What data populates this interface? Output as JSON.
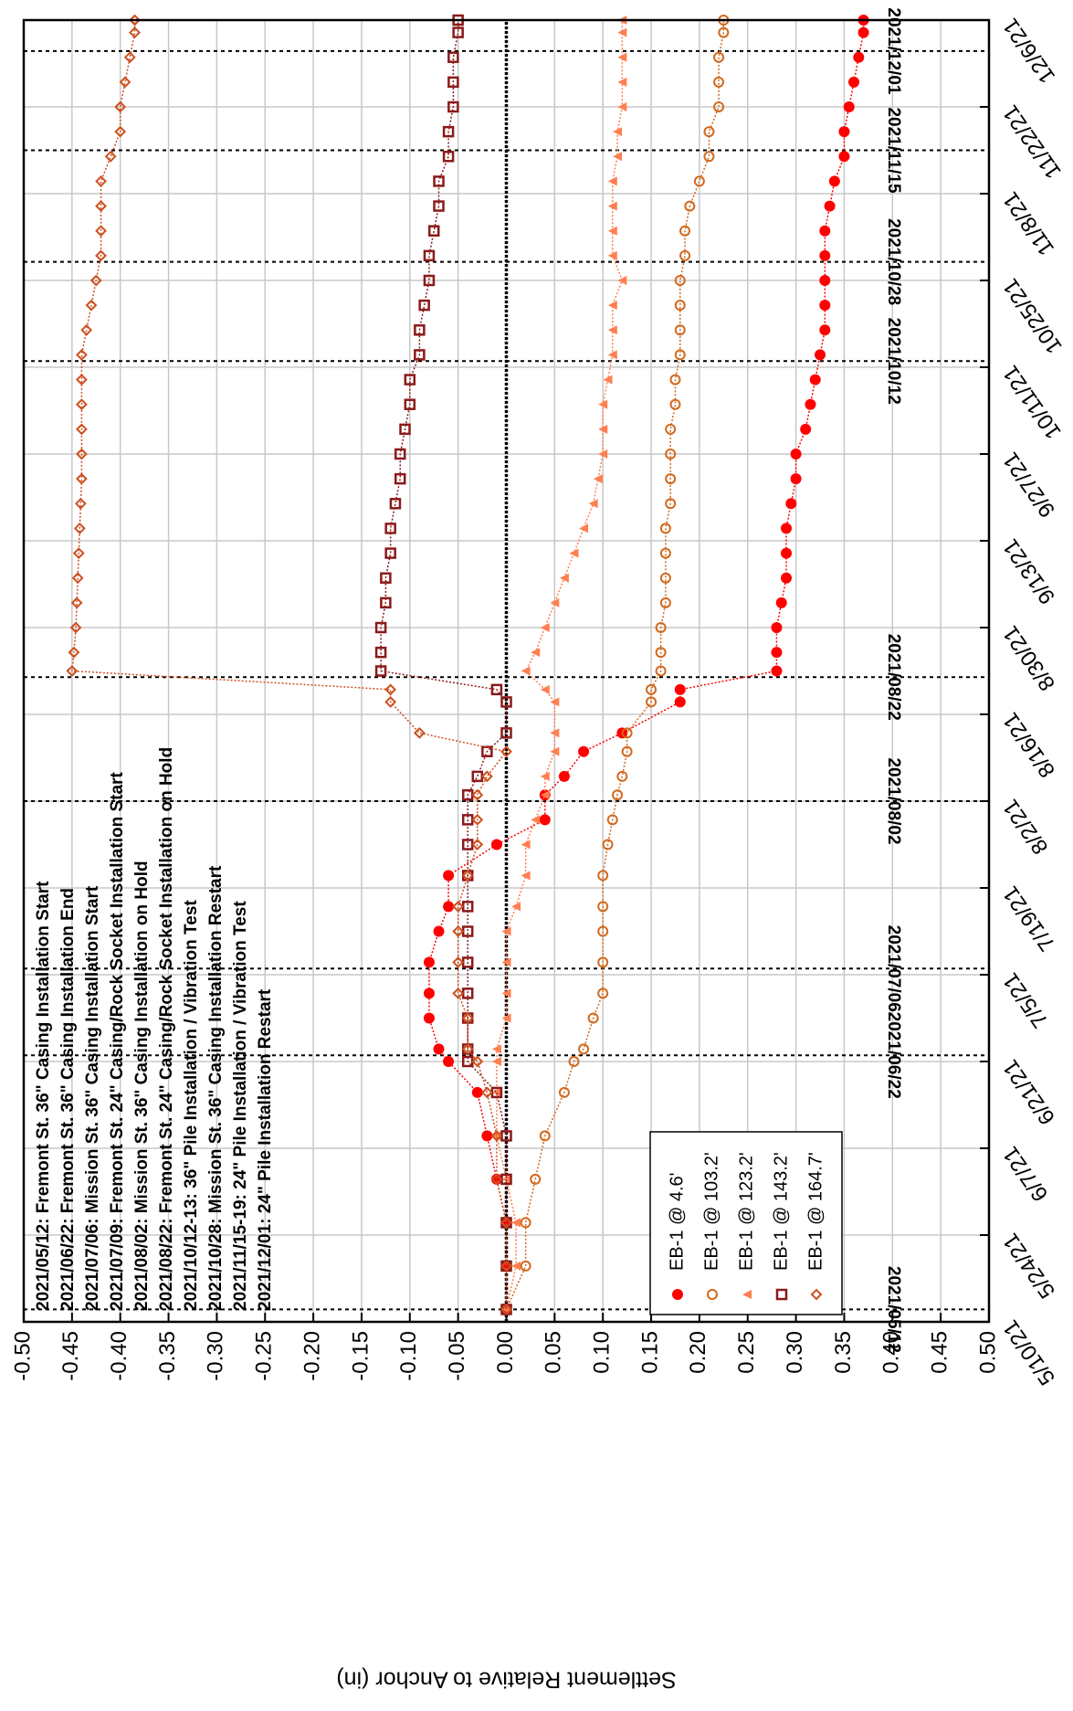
{
  "chart_data": {
    "type": "line",
    "y_label": "Settlement Relative to Anchor (in)",
    "xlim": [
      "2021-05-10",
      "2021-12-06"
    ],
    "xticks": [
      {
        "value": "2021-05-10",
        "label": "5/10/21"
      },
      {
        "value": "2021-05-24",
        "label": "5/24/21"
      },
      {
        "value": "2021-06-07",
        "label": "6/7/21"
      },
      {
        "value": "2021-06-21",
        "label": "6/21/21"
      },
      {
        "value": "2021-07-05",
        "label": "7/5/21"
      },
      {
        "value": "2021-07-19",
        "label": "7/19/21"
      },
      {
        "value": "2021-08-02",
        "label": "8/2/21"
      },
      {
        "value": "2021-08-16",
        "label": "8/16/21"
      },
      {
        "value": "2021-08-30",
        "label": "8/30/21"
      },
      {
        "value": "2021-09-13",
        "label": "9/13/21"
      },
      {
        "value": "2021-09-27",
        "label": "9/27/21"
      },
      {
        "value": "2021-10-11",
        "label": "10/11/21"
      },
      {
        "value": "2021-10-25",
        "label": "10/25/21"
      },
      {
        "value": "2021-11-08",
        "label": "11/8/21"
      },
      {
        "value": "2021-11-22",
        "label": "11/22/21"
      },
      {
        "value": "2021-12-06",
        "label": "12/6/21"
      }
    ],
    "ylim": [
      -0.5,
      0.5
    ],
    "y_inverted": true,
    "yticks": [
      {
        "value": -0.5,
        "label": "-0.50"
      },
      {
        "value": -0.45,
        "label": "-0.45"
      },
      {
        "value": -0.4,
        "label": "-0.40"
      },
      {
        "value": -0.35,
        "label": "-0.35"
      },
      {
        "value": -0.3,
        "label": "-0.30"
      },
      {
        "value": -0.25,
        "label": "-0.25"
      },
      {
        "value": -0.2,
        "label": "-0.20"
      },
      {
        "value": -0.15,
        "label": "-0.15"
      },
      {
        "value": -0.1,
        "label": "-0.10"
      },
      {
        "value": -0.05,
        "label": "-0.05"
      },
      {
        "value": 0,
        "label": "0.00"
      },
      {
        "value": 0.05,
        "label": "0.05"
      },
      {
        "value": 0.1,
        "label": "0.10"
      },
      {
        "value": 0.15,
        "label": "0.15"
      },
      {
        "value": 0.2,
        "label": "0.20"
      },
      {
        "value": 0.25,
        "label": "0.25"
      },
      {
        "value": 0.3,
        "label": "0.30"
      },
      {
        "value": 0.35,
        "label": "0.35"
      },
      {
        "value": 0.4,
        "label": "0.40"
      },
      {
        "value": 0.45,
        "label": "0.45"
      },
      {
        "value": 0.5,
        "label": "0.50"
      }
    ],
    "grid": true,
    "rotation": -90,
    "legend": "lower-left",
    "notes": [
      "2021/05/12: Fremont St. 36\" Casing Installation Start",
      "2021/06/22: Fremont St. 36\" Casing Installation End",
      "2021/07/06: Mission St.  36\" Casing Installation Start",
      "2021/07/09: Fremont St. 24\" Casing/Rock Socket Installation Start",
      "2021/08/02: Mission St.  36\" Casing Installation on Hold",
      "2021/08/22: Fremont St. 24\" Casing/Rock Socket Installation on Hold",
      "2021/10/12-13: 36\" Pile Installation / Vibration Test",
      "2021/10/28: Mission St.  36\" Casing Installation Restart",
      "2021/11/15-19: 24\" Pile Installation / Vibration Test",
      "2021/12/01: 24\" Pile Installation Restart"
    ],
    "events": [
      {
        "date": "2021-05-12",
        "label": "2021/05/12"
      },
      {
        "date": "2021-06-22",
        "label": "2021/06/22"
      },
      {
        "date": "2021-07-06",
        "label": "2021/07/06"
      },
      {
        "date": "2021-08-02",
        "label": "2021/08/02"
      },
      {
        "date": "2021-08-22",
        "label": "2021/08/22"
      },
      {
        "date": "2021-10-12",
        "label": "2021/10/12"
      },
      {
        "date": "2021-10-28",
        "label": "2021/10/28"
      },
      {
        "date": "2021-11-15",
        "label": "2021/11/15"
      },
      {
        "date": "2021-12-01",
        "label": "2021/12/01"
      }
    ],
    "x": [
      "2021-05-12",
      "2021-05-19",
      "2021-05-26",
      "2021-06-02",
      "2021-06-09",
      "2021-06-16",
      "2021-06-21",
      "2021-06-23",
      "2021-06-28",
      "2021-07-02",
      "2021-07-07",
      "2021-07-12",
      "2021-07-16",
      "2021-07-21",
      "2021-07-26",
      "2021-07-30",
      "2021-08-03",
      "2021-08-06",
      "2021-08-10",
      "2021-08-13",
      "2021-08-18",
      "2021-08-20",
      "2021-08-23",
      "2021-08-26",
      "2021-08-30",
      "2021-09-03",
      "2021-09-07",
      "2021-09-11",
      "2021-09-15",
      "2021-09-19",
      "2021-09-23",
      "2021-09-27",
      "2021-10-01",
      "2021-10-05",
      "2021-10-09",
      "2021-10-13",
      "2021-10-17",
      "2021-10-21",
      "2021-10-25",
      "2021-10-29",
      "2021-11-02",
      "2021-11-06",
      "2021-11-10",
      "2021-11-14",
      "2021-11-18",
      "2021-11-22",
      "2021-11-26",
      "2021-11-30",
      "2021-12-04",
      "2021-12-06"
    ],
    "series": [
      {
        "name": "EB-1 @ 4.6'",
        "color": "#ff0000",
        "marker": "filled-circle",
        "values": [
          0,
          0,
          0,
          -0.01,
          -0.02,
          -0.03,
          -0.06,
          -0.07,
          -0.08,
          -0.08,
          -0.08,
          -0.07,
          -0.06,
          -0.06,
          -0.01,
          0.04,
          0.04,
          0.06,
          0.08,
          0.12,
          0.18,
          0.18,
          0.28,
          0.28,
          0.28,
          0.285,
          0.29,
          0.29,
          0.29,
          0.295,
          0.3,
          0.3,
          0.31,
          0.315,
          0.32,
          0.325,
          0.33,
          0.33,
          0.33,
          0.33,
          0.33,
          0.335,
          0.34,
          0.35,
          0.35,
          0.355,
          0.36,
          0.365,
          0.37,
          0.37
        ]
      },
      {
        "name": "EB-1 @ 103.2'",
        "color": "#d2691e",
        "marker": "circle",
        "values": [
          0,
          0.02,
          0.02,
          0.03,
          0.04,
          0.06,
          0.07,
          0.08,
          0.09,
          0.1,
          0.1,
          0.1,
          0.1,
          0.1,
          0.105,
          0.11,
          0.115,
          0.12,
          0.125,
          0.125,
          0.15,
          0.15,
          0.16,
          0.16,
          0.16,
          0.165,
          0.165,
          0.165,
          0.165,
          0.17,
          0.17,
          0.17,
          0.17,
          0.175,
          0.175,
          0.18,
          0.18,
          0.18,
          0.18,
          0.185,
          0.185,
          0.19,
          0.2,
          0.21,
          0.21,
          0.22,
          0.22,
          0.22,
          0.225,
          0.225
        ]
      },
      {
        "name": "EB-1 @ 123.2'",
        "color": "#ff7f50",
        "marker": "triangle",
        "values": [
          0,
          0.01,
          0.01,
          0,
          -0.01,
          -0.01,
          -0.01,
          -0.01,
          0,
          0,
          0,
          0,
          0.01,
          0.02,
          0.02,
          0.03,
          0.04,
          0.04,
          0.05,
          0.05,
          0.05,
          0.04,
          0.02,
          0.03,
          0.04,
          0.05,
          0.06,
          0.07,
          0.08,
          0.09,
          0.095,
          0.1,
          0.1,
          0.1,
          0.105,
          0.11,
          0.11,
          0.11,
          0.12,
          0.11,
          0.11,
          0.11,
          0.11,
          0.115,
          0.115,
          0.12,
          0.12,
          0.12,
          0.12,
          0.12
        ]
      },
      {
        "name": "EB-1 @ 143.2'",
        "color": "#8b1a1a",
        "marker": "square",
        "values": [
          0,
          0,
          0,
          0,
          0,
          -0.01,
          -0.04,
          -0.04,
          -0.04,
          -0.04,
          -0.04,
          -0.04,
          -0.04,
          -0.04,
          -0.04,
          -0.04,
          -0.04,
          -0.03,
          -0.02,
          0,
          0,
          -0.01,
          -0.13,
          -0.13,
          -0.13,
          -0.125,
          -0.125,
          -0.12,
          -0.12,
          -0.115,
          -0.11,
          -0.11,
          -0.105,
          -0.1,
          -0.1,
          -0.09,
          -0.09,
          -0.085,
          -0.08,
          -0.08,
          -0.075,
          -0.07,
          -0.07,
          -0.06,
          -0.06,
          -0.055,
          -0.055,
          -0.055,
          -0.05,
          -0.05
        ]
      },
      {
        "name": "EB-1 @ 164.7'",
        "color": "#cd5020",
        "marker": "diamond",
        "values": [
          0,
          0,
          0,
          -0.01,
          -0.01,
          -0.02,
          -0.03,
          -0.04,
          -0.04,
          -0.05,
          -0.05,
          -0.05,
          -0.05,
          -0.04,
          -0.03,
          -0.03,
          -0.03,
          -0.02,
          0,
          -0.09,
          -0.12,
          -0.12,
          -0.45,
          -0.448,
          -0.446,
          -0.445,
          -0.444,
          -0.443,
          -0.442,
          -0.441,
          -0.44,
          -0.44,
          -0.44,
          -0.44,
          -0.44,
          -0.44,
          -0.435,
          -0.43,
          -0.425,
          -0.42,
          -0.42,
          -0.42,
          -0.42,
          -0.41,
          -0.4,
          -0.4,
          -0.395,
          -0.39,
          -0.385,
          -0.385
        ]
      }
    ]
  }
}
